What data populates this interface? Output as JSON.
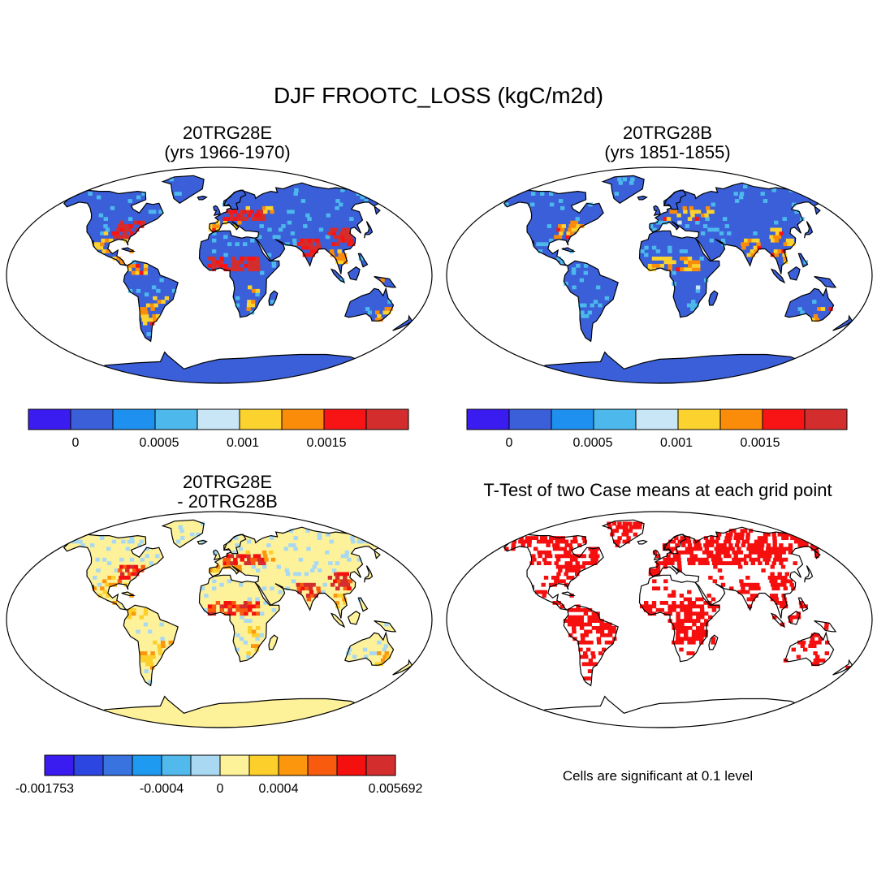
{
  "title": "DJF FROOTC_LOSS (kgC/m2d)",
  "panels": [
    {
      "line1": "20TRG28E",
      "line2": "(yrs 1966-1970)",
      "style": "abs",
      "intensity": 1.0
    },
    {
      "line1": "20TRG28B",
      "line2": "(yrs 1851-1855)",
      "style": "abs",
      "intensity": 0.7
    },
    {
      "line1": "20TRG28E",
      "line2": "- 20TRG28B",
      "style": "diff",
      "intensity": 1.0
    },
    {
      "line1": "T-Test of two Case means at each grid point",
      "line2": "",
      "style": "ttest",
      "intensity": 1.0
    }
  ],
  "colorbar_abs": {
    "colors": [
      "#3b1cf0",
      "#3a5fd8",
      "#1e90f0",
      "#4cb8ec",
      "#c8e6f6",
      "#fcd22e",
      "#fb8c0a",
      "#f81414",
      "#d42d2d"
    ],
    "labels": [
      "0",
      "0.0005",
      "0.001",
      "0.0015"
    ]
  },
  "colorbar_diff": {
    "colors": [
      "#3b1cf0",
      "#2c46e2",
      "#3873e0",
      "#1e9af0",
      "#52b9ec",
      "#a9d9f2",
      "#fdf19a",
      "#fdcf2b",
      "#fb960d",
      "#f85a0e",
      "#f51010",
      "#d42d2d"
    ],
    "labels": [
      "-0.001753",
      "-0.0004",
      "0",
      "0.0004",
      "0.005692"
    ]
  },
  "ttest_note": "Cells are significant at 0.1 level",
  "colors": {
    "land_abs": "#3a5fd8",
    "land_diff": "#fdf19a",
    "significant": "#f50f0f",
    "coast": "#000000"
  }
}
